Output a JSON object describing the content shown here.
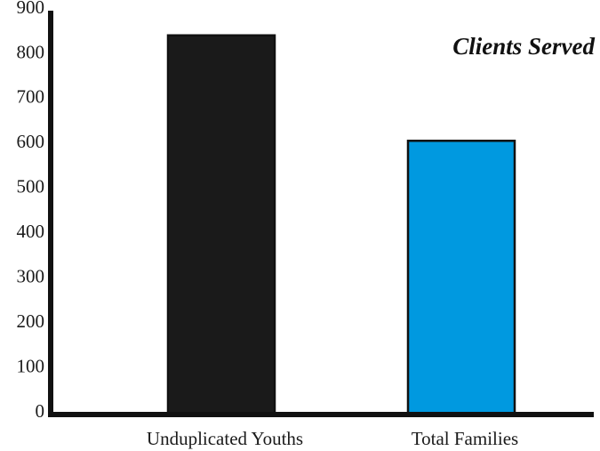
{
  "chart_data": {
    "type": "bar",
    "title": "Clients Served",
    "xlabel": "",
    "ylabel": "",
    "categories": [
      "Unduplicated Youths",
      "Total Families"
    ],
    "values": [
      845,
      610
    ],
    "ylim": [
      0,
      900
    ],
    "yticks": [
      "0",
      "100",
      "200",
      "300",
      "400",
      "500",
      "600",
      "700",
      "800",
      "900"
    ],
    "grid": false,
    "legend": "none",
    "colors": {
      "bars": [
        "#1a1a1a",
        "#0099e0"
      ],
      "bar_outline": "#111111",
      "axis": "#111111"
    }
  }
}
